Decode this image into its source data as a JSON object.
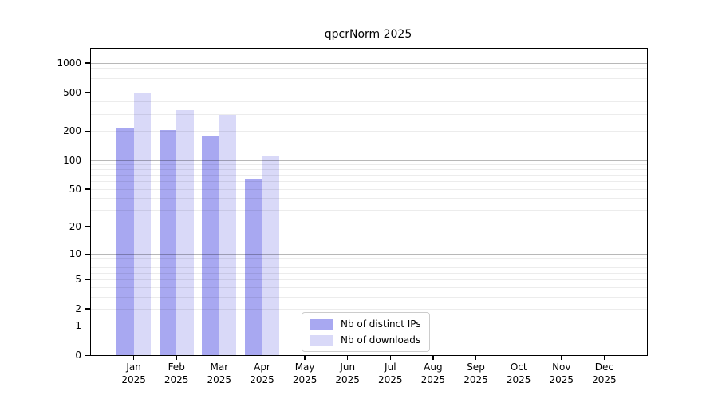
{
  "chart_data": {
    "type": "bar",
    "title": "qpcrNorm 2025",
    "categories": [
      "Jan 2025",
      "Feb 2025",
      "Mar 2025",
      "Apr 2025",
      "May 2025",
      "Jun 2025",
      "Jul 2025",
      "Aug 2025",
      "Sep 2025",
      "Oct 2025",
      "Nov 2025",
      "Dec 2025"
    ],
    "series": [
      {
        "name": "Nb of distinct IPs",
        "color": "#a8a8f1",
        "values": [
          218,
          203,
          174,
          64,
          0,
          0,
          0,
          0,
          0,
          0,
          0,
          0
        ]
      },
      {
        "name": "Nb of downloads",
        "color": "#d9d9f8",
        "values": [
          490,
          325,
          295,
          108,
          0,
          0,
          0,
          0,
          0,
          0,
          0,
          0
        ]
      }
    ],
    "y_ticks": [
      0,
      1,
      2,
      5,
      10,
      20,
      50,
      100,
      200,
      500,
      1000
    ],
    "y_scale": "log10(1+x)",
    "ylim": [
      0,
      1400
    ],
    "grid": true,
    "legend_position": "inside-bottom-center",
    "xlabel": "",
    "ylabel": ""
  },
  "colors": {
    "bar_distinct_ips": "#a8a8f1",
    "bar_downloads": "#d9d9f8",
    "grid_minor": "rgba(0,0,0,0.075)",
    "grid_decade": "rgba(0,0,0,0.28)",
    "axis": "#000000",
    "legend_border": "#cccccc"
  }
}
